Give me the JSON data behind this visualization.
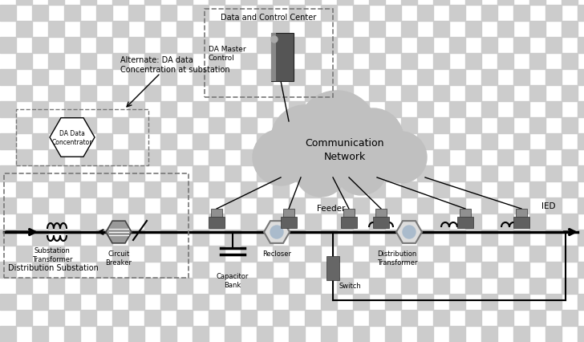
{
  "bg_color": "#ffffff",
  "checker_light": "#ffffff",
  "checker_dark": "#cccccc",
  "checker_size": 20,
  "line_color": "#000000",
  "dark_gray": "#555555",
  "med_gray": "#888888",
  "light_gray": "#bbbbbb",
  "cloud_color": "#c0c0c0",
  "dashed_box_color": "#777777",
  "title_data_control": "Data and Control Center",
  "label_da_master": "DA Master\nControl",
  "label_comm_network": "Communication\nNetwork",
  "label_alternate": "Alternate: DA data\nConcentration at substation",
  "label_da_concentrator": "DA Data\nConcentrator",
  "label_substation_transformer": "Substation\nTransformer",
  "label_circuit_breaker": "Circuit\nBreaker",
  "label_dist_substation": "Distribution Substation",
  "label_capacitor_bank": "Capacitor\nBank",
  "label_recloser": "Recloser",
  "label_feeder": "Feeder",
  "label_switch": "Switch",
  "label_dist_transformer": "Distribution\nTransformer",
  "label_ied": "IED"
}
